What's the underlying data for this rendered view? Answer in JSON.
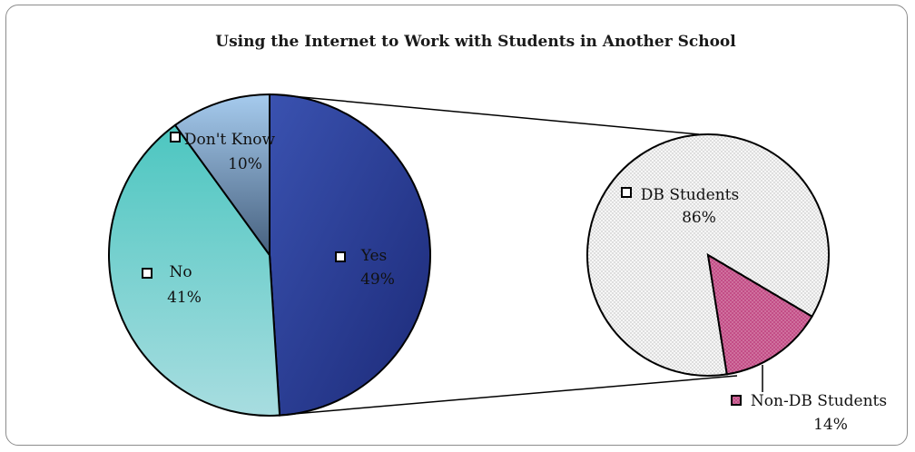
{
  "chart_data": {
    "type": "pie",
    "title": "Using the Internet to Work with Students in Another School",
    "main_pie": {
      "slices": [
        {
          "label": "Yes",
          "value": 49,
          "value_label": "49%",
          "color": "#2b3f96"
        },
        {
          "label": "No",
          "value": 41,
          "value_label": "41%",
          "color": "#5fcbc6"
        },
        {
          "label": "Don't Know",
          "value": 10,
          "value_label": "10%",
          "color": "#8eb7dc"
        }
      ]
    },
    "breakout_pie": {
      "parent": "Yes",
      "slices": [
        {
          "label": "DB Students",
          "value": 86,
          "value_label": "86%",
          "color": "#f7f7f7",
          "pattern": "dots"
        },
        {
          "label": "Non-DB Students",
          "value": 14,
          "value_label": "14%",
          "color": "#c24d86",
          "pattern": "dots"
        }
      ]
    }
  }
}
